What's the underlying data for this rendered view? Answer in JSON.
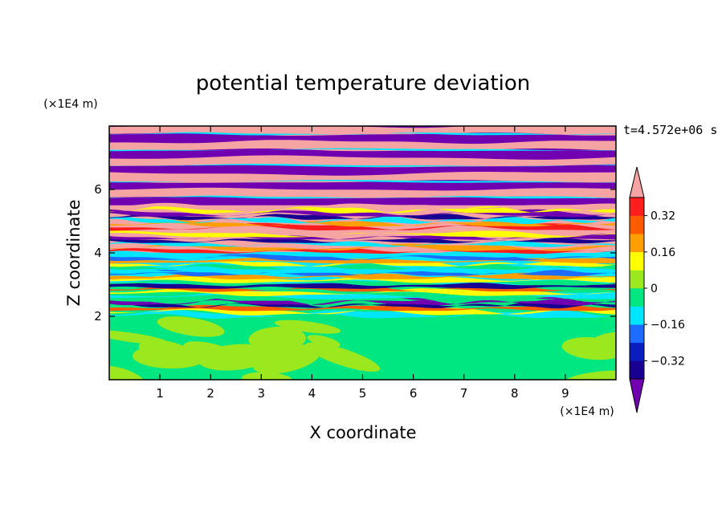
{
  "chart_data": {
    "type": "heatmap",
    "title": "potential temperature deviation",
    "xlabel": "X coordinate",
    "ylabel": "Z coordinate",
    "x_unit": "(×1E4 m)",
    "y_unit": "(×1E4 m)",
    "time_label": "t=4.572e+06 s",
    "xlim": [
      0,
      10
    ],
    "ylim": [
      0,
      8
    ],
    "x_ticks": [
      1,
      2,
      3,
      4,
      5,
      6,
      7,
      8,
      9
    ],
    "y_ticks": [
      2,
      4,
      6
    ],
    "x_tick_labels": [
      "1",
      "2",
      "3",
      "4",
      "5",
      "6",
      "7",
      "8",
      "9"
    ],
    "y_tick_labels": [
      "2",
      "4",
      "6"
    ],
    "colorbar": {
      "levels": [
        -0.4,
        -0.32,
        -0.24,
        -0.16,
        -0.08,
        0,
        0.08,
        0.16,
        0.24,
        0.32,
        0.4
      ],
      "labeled_levels": [
        0.32,
        0.16,
        0,
        -0.16,
        -0.32
      ],
      "labels": [
        "0.32",
        "0.16",
        "0",
        "−0.16",
        "−0.32"
      ],
      "colors": [
        "#7000b0",
        "#1a0090",
        "#0a1ec0",
        "#1e6cff",
        "#00e6ff",
        "#00e680",
        "#9ce81e",
        "#ffff00",
        "#ff9e00",
        "#ff5a00",
        "#ff1e1e",
        "#f5a3a3"
      ],
      "extend": "both"
    },
    "bands": [
      {
        "z_range": [
          0.0,
          2.0
        ],
        "pattern": "mixed",
        "colors": [
          "#00e680",
          "#9ce81e"
        ],
        "note_level_min": 0,
        "note_level_max": 0.08
      },
      {
        "z_range": [
          2.0,
          3.0
        ],
        "pattern": "thin-layers",
        "colors": [
          "#00e680",
          "#00e6ff",
          "#ffff00",
          "#ff5a00",
          "#1a0090",
          "#7000b0"
        ]
      },
      {
        "z_range": [
          3.0,
          4.0
        ],
        "pattern": "thin-layers",
        "colors": [
          "#00e6ff",
          "#00e680",
          "#ffff00",
          "#ff9e00",
          "#1e6cff"
        ]
      },
      {
        "z_range": [
          4.0,
          5.5
        ],
        "pattern": "thin-layers",
        "colors": [
          "#f5a3a3",
          "#ff1e1e",
          "#ff9e00",
          "#00e6ff",
          "#1a0090",
          "#7000b0",
          "#ffff00"
        ]
      },
      {
        "z_range": [
          5.5,
          8.0
        ],
        "pattern": "alternating",
        "colors": [
          "#7000b0",
          "#f5a3a3"
        ]
      }
    ]
  }
}
